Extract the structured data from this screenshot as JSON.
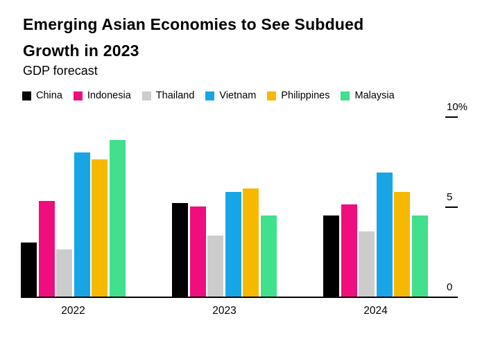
{
  "header": {
    "title": "Emerging Asian Economies to See Subdued Growth in 2023",
    "title_line1": "Emerging Asian Economies to See Subdued",
    "title_line2": "Growth in 2023",
    "subtitle": "GDP forecast"
  },
  "chart_data": {
    "type": "bar",
    "title": "Emerging Asian Economies to See Subdued Growth in 2023",
    "subtitle": "GDP forecast",
    "unit": "%",
    "categories": [
      "2022",
      "2023",
      "2024"
    ],
    "series": [
      {
        "name": "China",
        "color": "#000000",
        "values": [
          3.0,
          5.2,
          4.5
        ]
      },
      {
        "name": "Indonesia",
        "color": "#ef0e7d",
        "values": [
          5.3,
          5.0,
          5.1
        ]
      },
      {
        "name": "Thailand",
        "color": "#cccccc",
        "values": [
          2.6,
          3.4,
          3.6
        ]
      },
      {
        "name": "Vietnam",
        "color": "#18a5e6",
        "values": [
          8.0,
          5.8,
          6.9
        ]
      },
      {
        "name": "Philippines",
        "color": "#f6b900",
        "values": [
          7.6,
          6.0,
          5.8
        ]
      },
      {
        "name": "Malaysia",
        "color": "#40e08d",
        "values": [
          8.7,
          4.5,
          4.5
        ]
      }
    ],
    "ylim": [
      0,
      10
    ],
    "yticks": [
      {
        "label": "0",
        "value": 0,
        "dash": false
      },
      {
        "label": "5",
        "value": 5,
        "dash": true
      },
      {
        "label": "10%",
        "value": 10,
        "dash": true
      }
    ],
    "legend_position": "top",
    "grid": false,
    "axis_color": "#000000",
    "background_color": "#ffffff"
  }
}
